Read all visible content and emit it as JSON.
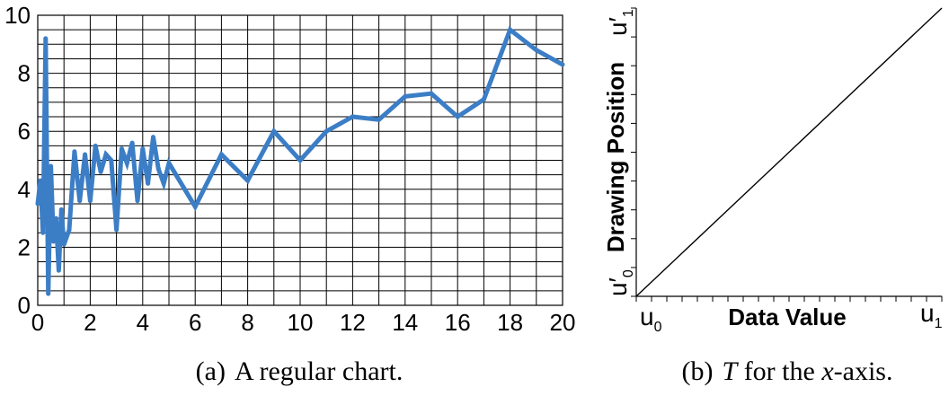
{
  "charts": [
    {
      "caption_tag": "(a)",
      "caption": "A regular chart.",
      "chart_data": {
        "type": "line",
        "title": "",
        "xlabel": "",
        "ylabel": "",
        "xlim": [
          0,
          20
        ],
        "ylim": [
          0,
          10
        ],
        "x_ticks": [
          0,
          2,
          4,
          6,
          8,
          10,
          12,
          14,
          16,
          18,
          20
        ],
        "y_ticks": [
          0,
          2,
          4,
          6,
          8,
          10
        ],
        "grid": true,
        "color": "#3c7ec6",
        "series": [
          {
            "name": "",
            "x": [
              0,
              0.1,
              0.2,
              0.3,
              0.4,
              0.5,
              0.6,
              0.7,
              0.8,
              0.9,
              1.0,
              1.2,
              1.4,
              1.6,
              1.8,
              2.0,
              2.2,
              2.4,
              2.6,
              2.8,
              3.0,
              3.2,
              3.4,
              3.6,
              3.8,
              4.0,
              4.2,
              4.4,
              4.6,
              4.8,
              5.0,
              6.0,
              7.0,
              8.0,
              9.0,
              10.0,
              11.0,
              12.0,
              13.0,
              14.0,
              15.0,
              16.0,
              17.0,
              18.0,
              19.0,
              20.0
            ],
            "y": [
              3.5,
              4.3,
              2.5,
              9.2,
              0.4,
              4.8,
              2.2,
              3.0,
              1.2,
              3.3,
              2.1,
              2.6,
              5.3,
              3.6,
              5.2,
              3.6,
              5.5,
              4.6,
              5.2,
              5.0,
              2.6,
              5.4,
              4.9,
              5.6,
              3.6,
              5.4,
              4.2,
              5.8,
              4.7,
              4.2,
              4.9,
              3.4,
              5.2,
              4.3,
              6.0,
              5.0,
              6.0,
              6.5,
              6.4,
              7.2,
              7.3,
              6.5,
              7.1,
              9.5,
              8.8,
              8.3
            ]
          }
        ]
      }
    },
    {
      "caption_tag": "(b)",
      "caption_T": "T",
      "caption_rest": " for the ",
      "caption_x": "x",
      "caption_end": "-axis.",
      "chart_data": {
        "type": "line",
        "title": "",
        "xlabel": "Data Value",
        "ylabel": "Drawing Position",
        "x_end_labels": [
          "u0",
          "u1"
        ],
        "y_end_labels": [
          "u′0",
          "u′1"
        ],
        "grid": false,
        "series": [
          {
            "name": "",
            "x": [
              0,
              1
            ],
            "y": [
              0,
              1
            ]
          }
        ]
      }
    }
  ]
}
